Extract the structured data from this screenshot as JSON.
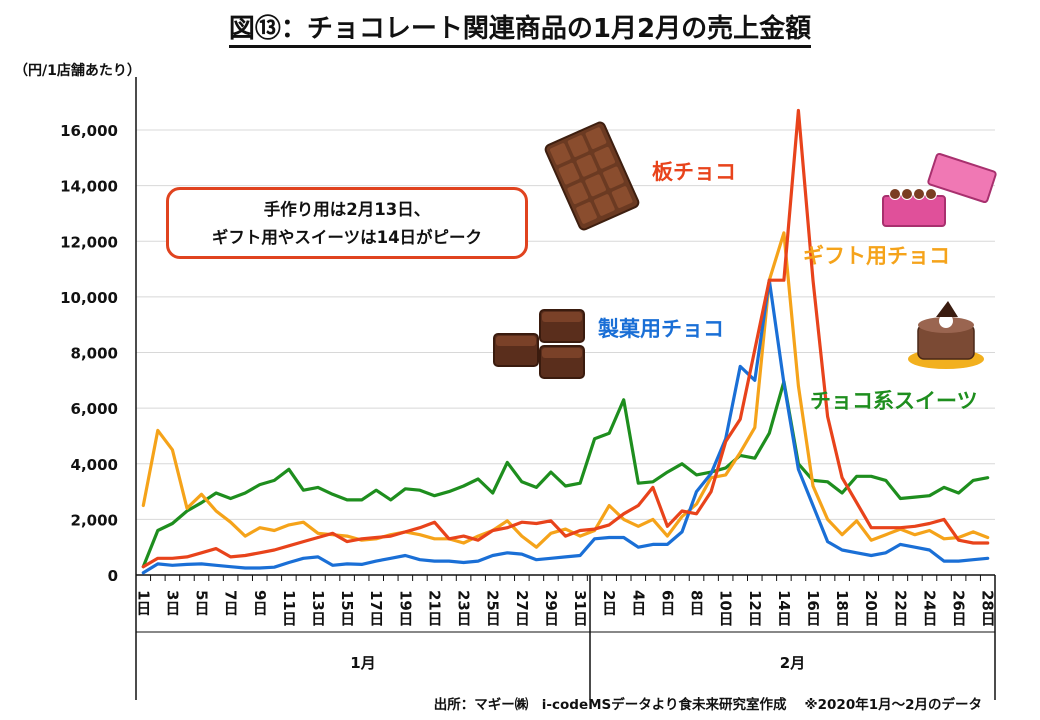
{
  "title": "図⑬：チョコレート関連商品の1月2月の売上金額",
  "unit_label": "（円/1店舗あたり）",
  "callout": {
    "line1": "手作り用は2月13日、",
    "line2": "ギフト用やスイーツは14日がピーク"
  },
  "source": "出所：マギー㈱　i-codeMSデータより食未来研究室作成",
  "note": "※2020年1月～2月のデータ",
  "colors": {
    "板チョコ": "#e8431b",
    "ギフト用チョコ": "#f5a31a",
    "製菓用チョコ": "#1a6fd6",
    "チョコ系スイーツ": "#1e8e1e"
  },
  "chart_data": {
    "type": "line",
    "title": "図⑬：チョコレート関連商品の1月2月の売上金額",
    "ylabel": "（円/1店舗あたり）",
    "xlabel": "",
    "ylim": [
      0,
      17000
    ],
    "yticks": [
      0,
      2000,
      4000,
      6000,
      8000,
      10000,
      12000,
      14000,
      16000
    ],
    "ytick_labels": [
      "0",
      "2,000",
      "4,000",
      "6,000",
      "8,000",
      "10,000",
      "12,000",
      "14,000",
      "16,000"
    ],
    "x_tick_labels": [
      "1日",
      "3日",
      "5日",
      "7日",
      "9日",
      "11日",
      "13日",
      "15日",
      "17日",
      "19日",
      "21日",
      "23日",
      "25日",
      "27日",
      "29日",
      "31日",
      "2日",
      "4日",
      "6日",
      "8日",
      "10日",
      "12日",
      "14日",
      "16日",
      "18日",
      "20日",
      "22日",
      "24日",
      "26日",
      "28日"
    ],
    "month_labels": [
      "1月",
      "2月"
    ],
    "n_points": 59,
    "series": [
      {
        "name": "板チョコ",
        "color": "#e8431b",
        "values": [
          300,
          600,
          600,
          650,
          800,
          950,
          650,
          700,
          800,
          900,
          1050,
          1200,
          1350,
          1500,
          1200,
          1300,
          1350,
          1400,
          1550,
          1700,
          1900,
          1300,
          1400,
          1250,
          1600,
          1700,
          1900,
          1850,
          1950,
          1400,
          1600,
          1650,
          1800,
          2200,
          2500,
          3150,
          1750,
          2300,
          2200,
          3000,
          4800,
          5600,
          8100,
          10600,
          10600,
          16700,
          10600,
          5700,
          3500,
          2600,
          1700,
          1700,
          1700,
          1750,
          1850,
          2000,
          1250,
          1150,
          1150
        ]
      },
      {
        "name": "ギフト用チョコ",
        "color": "#f5a31a",
        "values": [
          2500,
          5200,
          4500,
          2400,
          2900,
          2300,
          1900,
          1400,
          1700,
          1600,
          1800,
          1900,
          1500,
          1450,
          1400,
          1250,
          1300,
          1450,
          1550,
          1450,
          1300,
          1300,
          1150,
          1400,
          1600,
          1950,
          1400,
          1000,
          1500,
          1650,
          1400,
          1600,
          2500,
          2000,
          1750,
          2000,
          1400,
          2100,
          2550,
          3500,
          3600,
          4400,
          5300,
          10600,
          12300,
          6800,
          3200,
          2000,
          1450,
          1950,
          1250,
          1450,
          1650,
          1450,
          1600,
          1300,
          1350,
          1550,
          1350
        ]
      },
      {
        "name": "製菓用チョコ",
        "color": "#1a6fd6",
        "values": [
          80,
          400,
          350,
          380,
          400,
          350,
          300,
          250,
          250,
          280,
          450,
          600,
          650,
          350,
          400,
          380,
          500,
          600,
          700,
          550,
          500,
          500,
          450,
          500,
          700,
          800,
          750,
          550,
          600,
          650,
          700,
          1300,
          1350,
          1350,
          1000,
          1100,
          1100,
          1550,
          3000,
          3650,
          4900,
          7500,
          7000,
          10600,
          6900,
          3800,
          2500,
          1200,
          900,
          800,
          700,
          800,
          1100,
          1000,
          900,
          500,
          500,
          550,
          600
        ]
      },
      {
        "name": "チョコ系スイーツ",
        "color": "#1e8e1e",
        "values": [
          300,
          1600,
          1850,
          2300,
          2600,
          2950,
          2750,
          2950,
          3250,
          3400,
          3800,
          3050,
          3150,
          2900,
          2700,
          2700,
          3050,
          2700,
          3100,
          3050,
          2850,
          3000,
          3200,
          3450,
          2950,
          4050,
          3350,
          3150,
          3700,
          3200,
          3300,
          4900,
          5100,
          6300,
          3300,
          3350,
          3700,
          4000,
          3600,
          3700,
          3850,
          4300,
          4200,
          5100,
          6950,
          4000,
          3400,
          3350,
          2950,
          3550,
          3550,
          3400,
          2750,
          2800,
          2850,
          3150,
          2950,
          3400,
          3500
        ]
      }
    ]
  },
  "series_labels": [
    "板チョコ",
    "ギフト用チョコ",
    "製菓用チョコ",
    "チョコ系スイーツ"
  ]
}
